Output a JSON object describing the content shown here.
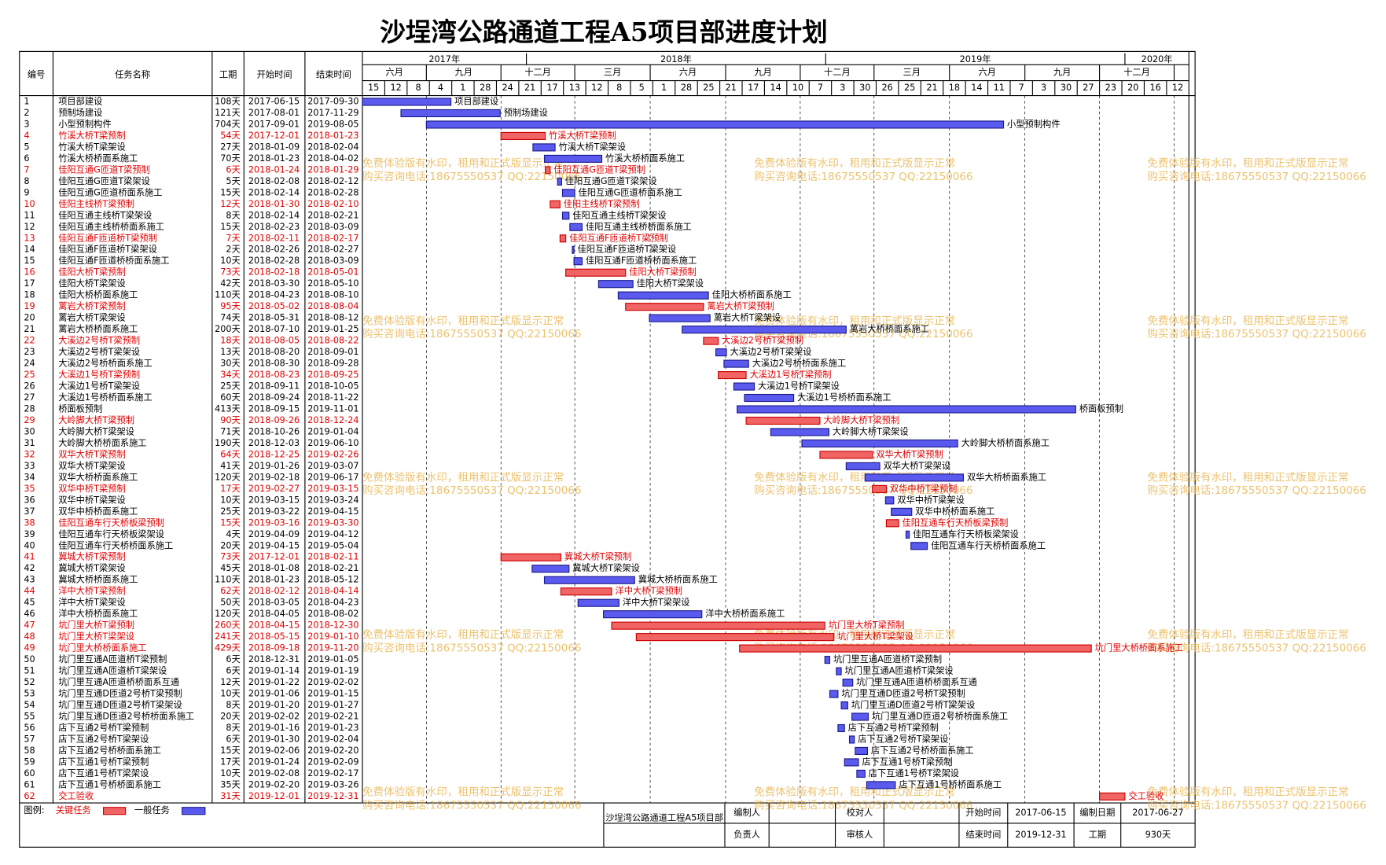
{
  "title": "沙埕湾公路通道工程A5项目部进度计划",
  "table_headers": [
    "编号",
    "任务名称",
    "工期",
    "开始时间",
    "结束时间"
  ],
  "legend": {
    "title": "图例:",
    "critical": "关键任务",
    "normal": "一般任务"
  },
  "info": {
    "project": "沙埕湾公路通道工程A5项目部",
    "editor": "编制人",
    "checker": "校对人",
    "start_label": "开始时间",
    "start": "2017-06-15",
    "date_label": "编制日期",
    "date": "2017-06-27",
    "manager": "负责人",
    "reviewer": "审核人",
    "end_label": "结束时间",
    "end": "2019-12-31",
    "duration_label": "工期",
    "duration": "930天"
  },
  "watermark": [
    "免费体验版有水印，租用和正式版显示正常",
    "购买咨询电话:18675550537 QQ:22150066"
  ],
  "chart_data": {
    "type": "gantt",
    "xlim": [
      "2017-06-15",
      "2020-03-19"
    ],
    "years": [
      "2017年",
      "2018年",
      "2019年",
      "2020年"
    ],
    "months": [
      "六月",
      "九月",
      "十二月",
      "三月",
      "六月",
      "九月",
      "十二月",
      "三月",
      "六月",
      "九月",
      "十二月"
    ],
    "weeks": [
      "15",
      "12",
      "8",
      "4",
      "1",
      "28",
      "24",
      "21",
      "17",
      "13",
      "12",
      "8",
      "5",
      "1",
      "28",
      "25",
      "21",
      "17",
      "14",
      "10",
      "7",
      "3",
      "30",
      "26",
      "25",
      "21",
      "18",
      "14",
      "11",
      "7",
      "3",
      "30",
      "27",
      "23",
      "20",
      "16",
      "12"
    ],
    "colors": {
      "critical": "#f06464",
      "critical_border": "#cc0000",
      "normal": "#5a5aee",
      "normal_border": "#1a1a8c"
    },
    "ids": [
      1,
      2,
      3,
      4,
      5,
      6,
      7,
      8,
      9,
      10,
      11,
      12,
      13,
      14,
      15,
      16,
      17,
      18,
      19,
      20,
      21,
      22,
      23,
      24,
      25,
      26,
      27,
      28,
      29,
      30,
      31,
      32,
      33,
      34,
      35,
      36,
      37,
      38,
      39,
      40,
      41,
      42,
      43,
      44,
      45,
      46,
      47,
      48,
      49,
      50,
      51,
      52,
      53,
      54,
      55,
      56,
      57,
      58,
      59,
      60,
      61,
      62
    ],
    "names": [
      "项目部建设",
      "预制场建设",
      "小型预制构件",
      "竹溪大桥T梁预制",
      "竹溪大桥T梁架设",
      "竹溪大桥桥面系施工",
      "佳阳互通G匝道T梁预制",
      "佳阳互通G匝道T梁架设",
      "佳阳互通G匝道桥面系施工",
      "佳阳主线桥T梁预制",
      "佳阳互通主线桥T梁架设",
      "佳阳互通主线桥桥面系施工",
      "佳阳互通F匝道桥T梁预制",
      "佳阳互通F匝道桥T梁架设",
      "佳阳互通F匝道桥桥面系施工",
      "佳阳大桥T梁预制",
      "佳阳大桥T梁架设",
      "佳阳大桥桥面系施工",
      "蓠岩大桥T梁预制",
      "蓠岩大桥T梁架设",
      "蓠岩大桥桥面系施工",
      "大溪边2号桥T梁预制",
      "大溪边2号桥T梁架设",
      "大溪边2号桥桥面系施工",
      "大溪边1号桥T梁预制",
      "大溪边1号桥T梁架设",
      "大溪边1号桥桥面系施工",
      "桥面板预制",
      "大岭脚大桥T梁预制",
      "大岭脚大桥T梁架设",
      "大岭脚大桥桥面系施工",
      "双华大桥T梁预制",
      "双华大桥T梁架设",
      "双华大桥桥面系施工",
      "双华中桥T梁预制",
      "双华中桥T梁架设",
      "双华中桥桥面系施工",
      "佳阳互通车行天桥板梁预制",
      "佳阳互通车行天桥板梁架设",
      "佳阳互通车行天桥桥面系施工",
      "冀城大桥T梁预制",
      "冀城大桥T梁架设",
      "冀城大桥桥面系施工",
      "洋中大桥T梁预制",
      "洋中大桥T梁架设",
      "洋中大桥桥面系施工",
      "坑门里大桥T梁预制",
      "坑门里大桥T梁架设",
      "坑门里大桥桥面系施工",
      "坑门里互通A匝道桥T梁预制",
      "坑门里互通A匝道桥T梁架设",
      "坑门里互通A匝道桥桥面系互通",
      "坑门里互通D匝道2号桥T梁预制",
      "坑门里互通D匝道2号桥T梁架设",
      "坑门里互通D匝道2号桥桥面系施工",
      "店下互通2号桥T梁预制",
      "店下互通2号桥T梁架设",
      "店下互通2号桥桥面系施工",
      "店下互通1号桥T梁预制",
      "店下互通1号桥T梁架设",
      "店下互通1号桥桥面系施工",
      "交工验收"
    ],
    "durations": [
      108,
      121,
      704,
      54,
      27,
      70,
      6,
      5,
      15,
      12,
      8,
      15,
      7,
      2,
      10,
      73,
      42,
      110,
      95,
      74,
      200,
      18,
      13,
      30,
      34,
      25,
      60,
      413,
      90,
      71,
      190,
      64,
      41,
      120,
      17,
      10,
      25,
      15,
      4,
      20,
      73,
      45,
      110,
      62,
      50,
      120,
      260,
      241,
      429,
      6,
      6,
      12,
      10,
      8,
      20,
      8,
      6,
      15,
      17,
      10,
      35,
      31
    ],
    "duration_labels": [
      "108天",
      "121天",
      "704天",
      "54天",
      "27天",
      "70天",
      "6天",
      "5天",
      "15天",
      "12天",
      "8天",
      "15天",
      "7天",
      "2天",
      "10天",
      "73天",
      "42天",
      "110天",
      "95天",
      "74天",
      "200天",
      "18天",
      "13天",
      "30天",
      "34天",
      "25天",
      "60天",
      "413天",
      "90天",
      "71天",
      "190天",
      "64天",
      "41天",
      "120天",
      "17天",
      "10天",
      "25天",
      "15天",
      "4天",
      "20天",
      "73天",
      "45天",
      "110天",
      "62天",
      "50天",
      "120天",
      "260天",
      "241天",
      "429天",
      "6天",
      "6天",
      "12天",
      "10天",
      "8天",
      "20天",
      "8天",
      "6天",
      "15天",
      "17天",
      "10天",
      "35天",
      "31天"
    ],
    "starts": [
      "2017-06-15",
      "2017-08-01",
      "2017-09-01",
      "2017-12-01",
      "2018-01-09",
      "2018-01-23",
      "2018-01-24",
      "2018-02-08",
      "2018-02-14",
      "2018-01-30",
      "2018-02-14",
      "2018-02-23",
      "2018-02-11",
      "2018-02-26",
      "2018-02-28",
      "2018-02-18",
      "2018-03-30",
      "2018-04-23",
      "2018-05-02",
      "2018-05-31",
      "2018-07-10",
      "2018-08-05",
      "2018-08-20",
      "2018-08-30",
      "2018-08-23",
      "2018-09-11",
      "2018-09-24",
      "2018-09-15",
      "2018-09-26",
      "2018-10-26",
      "2018-12-03",
      "2018-12-25",
      "2019-01-26",
      "2019-02-18",
      "2019-02-27",
      "2019-03-15",
      "2019-03-22",
      "2019-03-16",
      "2019-04-09",
      "2019-04-15",
      "2017-12-01",
      "2018-01-08",
      "2018-01-23",
      "2018-02-12",
      "2018-03-05",
      "2018-04-05",
      "2018-04-15",
      "2018-05-15",
      "2018-09-18",
      "2018-12-31",
      "2019-01-14",
      "2019-01-22",
      "2019-01-06",
      "2019-01-20",
      "2019-02-02",
      "2019-01-16",
      "2019-01-30",
      "2019-02-06",
      "2019-01-24",
      "2019-02-08",
      "2019-02-20",
      "2019-12-01"
    ],
    "ends": [
      "2017-09-30",
      "2017-11-29",
      "2019-08-05",
      "2018-01-23",
      "2018-02-04",
      "2018-04-02",
      "2018-01-29",
      "2018-02-12",
      "2018-02-28",
      "2018-02-10",
      "2018-02-21",
      "2018-03-09",
      "2018-02-17",
      "2018-02-27",
      "2018-03-09",
      "2018-05-01",
      "2018-05-10",
      "2018-08-10",
      "2018-08-04",
      "2018-08-12",
      "2019-01-25",
      "2018-08-22",
      "2018-09-01",
      "2018-09-28",
      "2018-09-25",
      "2018-10-05",
      "2018-11-22",
      "2019-11-01",
      "2018-12-24",
      "2019-01-04",
      "2019-06-10",
      "2019-02-26",
      "2019-03-07",
      "2019-06-17",
      "2019-03-15",
      "2019-03-24",
      "2019-04-15",
      "2019-03-30",
      "2019-04-12",
      "2019-05-04",
      "2018-02-11",
      "2018-02-21",
      "2018-05-12",
      "2018-04-14",
      "2018-04-23",
      "2018-08-02",
      "2018-12-30",
      "2019-01-10",
      "2019-11-20",
      "2019-01-05",
      "2019-01-19",
      "2019-02-02",
      "2019-01-15",
      "2019-01-27",
      "2019-02-21",
      "2019-01-23",
      "2019-02-04",
      "2019-02-20",
      "2019-02-09",
      "2019-02-17",
      "2019-03-26",
      "2019-12-31"
    ],
    "critical": [
      false,
      false,
      false,
      true,
      false,
      false,
      true,
      false,
      false,
      true,
      false,
      false,
      true,
      false,
      false,
      true,
      false,
      false,
      true,
      false,
      false,
      true,
      false,
      false,
      true,
      false,
      false,
      false,
      true,
      false,
      false,
      true,
      false,
      false,
      true,
      false,
      false,
      true,
      false,
      false,
      true,
      false,
      false,
      true,
      false,
      false,
      true,
      true,
      true,
      false,
      false,
      false,
      false,
      false,
      false,
      false,
      false,
      false,
      false,
      false,
      false,
      true
    ]
  }
}
